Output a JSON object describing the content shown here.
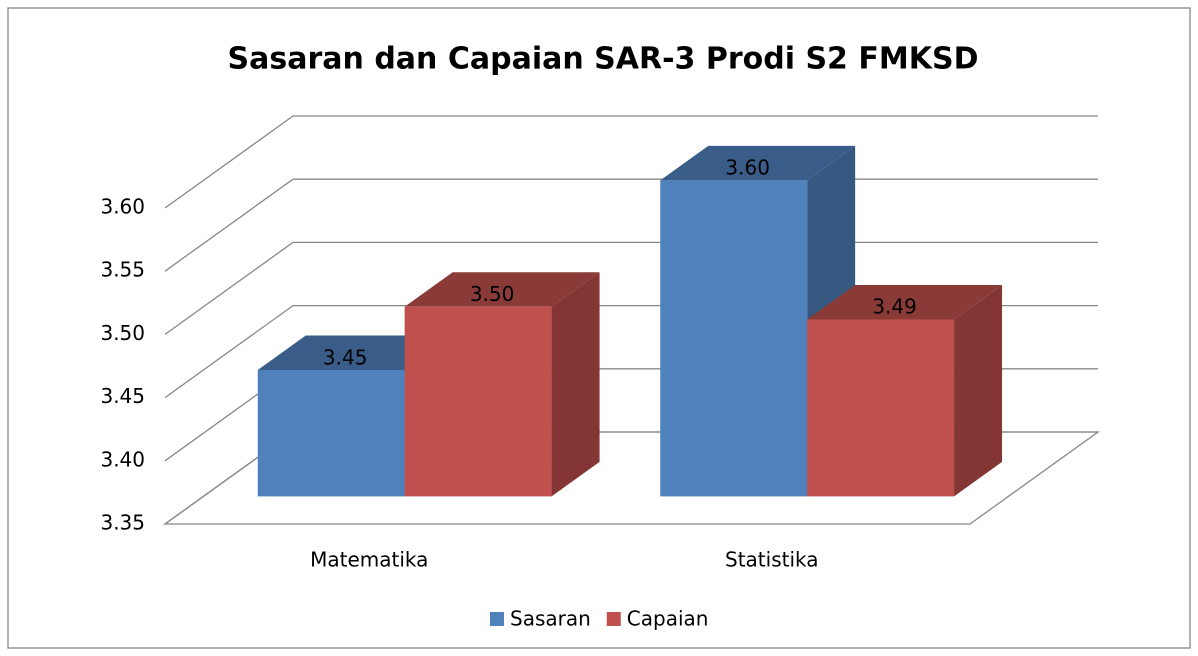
{
  "chart_data": {
    "type": "bar3d",
    "title": "Sasaran dan Capaian SAR-3 Prodi S2 FMKSD",
    "categories": [
      "Matematika",
      "Statistika"
    ],
    "series": [
      {
        "name": "Sasaran",
        "color": "#4f81bd",
        "values": [
          3.45,
          3.6
        ],
        "value_labels": [
          "3.45",
          "3.60"
        ]
      },
      {
        "name": "Capaian",
        "color": "#c0504d",
        "values": [
          3.5,
          3.49
        ],
        "value_labels": [
          "3.50",
          "3.49"
        ]
      }
    ],
    "ylim": [
      3.35,
      3.6
    ],
    "yticks": [
      3.35,
      {
        "value": 3.4,
        "label": "3.40"
      },
      3.45,
      {
        "value": 3.5,
        "label": "3.50"
      },
      3.55,
      {
        "value": 3.6,
        "label": "3.60"
      }
    ],
    "grid": true,
    "legend": "bottom"
  }
}
